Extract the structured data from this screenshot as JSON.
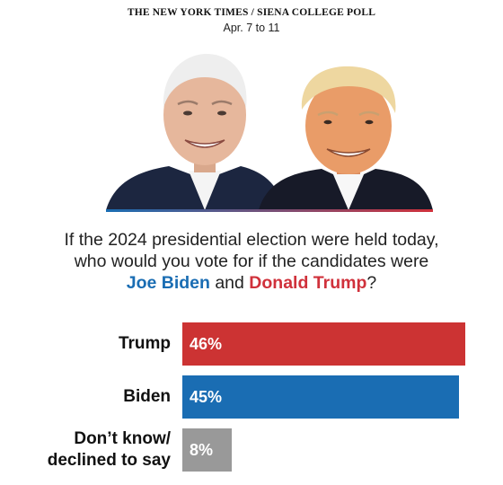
{
  "header": {
    "source": "THE NEW YORK TIMES / SIENA COLLEGE POLL",
    "dates": "Apr. 7 to 11"
  },
  "portraits": {
    "left": "Joe Biden portrait",
    "right": "Donald Trump portrait",
    "underline_colors": [
      "#1a6db3",
      "#d0313b"
    ]
  },
  "question": {
    "line1": "If the 2024 presidential election were held today,",
    "line2": "who would you vote for if the candidates were",
    "name1": "Joe Biden",
    "connector": " and ",
    "name2": "Donald Trump",
    "end": "?"
  },
  "colors": {
    "trump": "#cc3333",
    "biden": "#1a6db3",
    "undecided": "#999999"
  },
  "chart_data": {
    "type": "bar",
    "orientation": "horizontal",
    "categories": [
      "Trump",
      "Biden",
      "Don’t know/ declined to say"
    ],
    "category_lines": [
      [
        "Trump"
      ],
      [
        "Biden"
      ],
      [
        "Don’t know/",
        "declined to say"
      ]
    ],
    "values": [
      46,
      45,
      8
    ],
    "value_labels": [
      "46%",
      "45%",
      "8%"
    ],
    "colors": [
      "#cc3333",
      "#1a6db3",
      "#999999"
    ],
    "xlim": [
      0,
      46
    ]
  }
}
